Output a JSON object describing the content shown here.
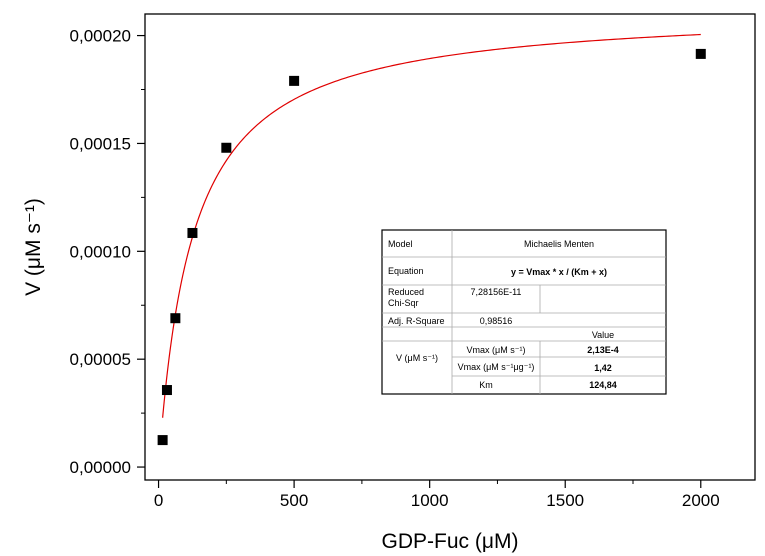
{
  "chart_data": {
    "type": "scatter",
    "xlabel": "GDP-Fuc (μM)",
    "ylabel": "V (μM s⁻¹)",
    "xlim": [
      -50,
      2200
    ],
    "ylim": [
      -6e-06,
      0.00021
    ],
    "x_ticks": [
      "0",
      "500",
      "1000",
      "1500",
      "2000"
    ],
    "x_tick_values": [
      0,
      500,
      1000,
      1500,
      2000
    ],
    "y_ticks": [
      "0,00000",
      "0,00005",
      "0,00010",
      "0,00015",
      "0,00020"
    ],
    "y_tick_values": [
      0,
      5e-05,
      0.0001,
      0.00015,
      0.0002
    ],
    "series": [
      {
        "kind": "points",
        "marker": "square",
        "color": "#000000",
        "x": [
          15,
          31,
          62,
          125,
          250,
          500,
          2000
        ],
        "y": [
          1.25e-05,
          3.57e-05,
          6.9e-05,
          0.0001085,
          0.000148,
          0.000179,
          0.0001915
        ]
      },
      {
        "kind": "fit",
        "color": "#e00000",
        "model": "michaelis-menten",
        "vmax": 0.000213,
        "km": 124.84,
        "x_range": [
          15,
          2000
        ]
      }
    ]
  },
  "fit_table": {
    "model_label": "Model",
    "model_value": "Michaelis Menten",
    "equation_label": "Equation",
    "equation_value": "y = Vmax * x / (Km + x)",
    "chisqr_label_1": "Reduced",
    "chisqr_label_2": "Chi-Sqr",
    "chisqr_value": "7,28156E-11",
    "rsq_label": "Adj. R-Square",
    "rsq_value": "0,98516",
    "value_header": "Value",
    "v_label": "V (μM s⁻¹)",
    "rows": [
      {
        "name": "Vmax (μM s⁻¹)",
        "value": "2,13E-4"
      },
      {
        "name": "Vmax (μM s⁻¹μg⁻¹)",
        "value": "1,42"
      },
      {
        "name": "Km",
        "value": "124,84"
      }
    ]
  }
}
